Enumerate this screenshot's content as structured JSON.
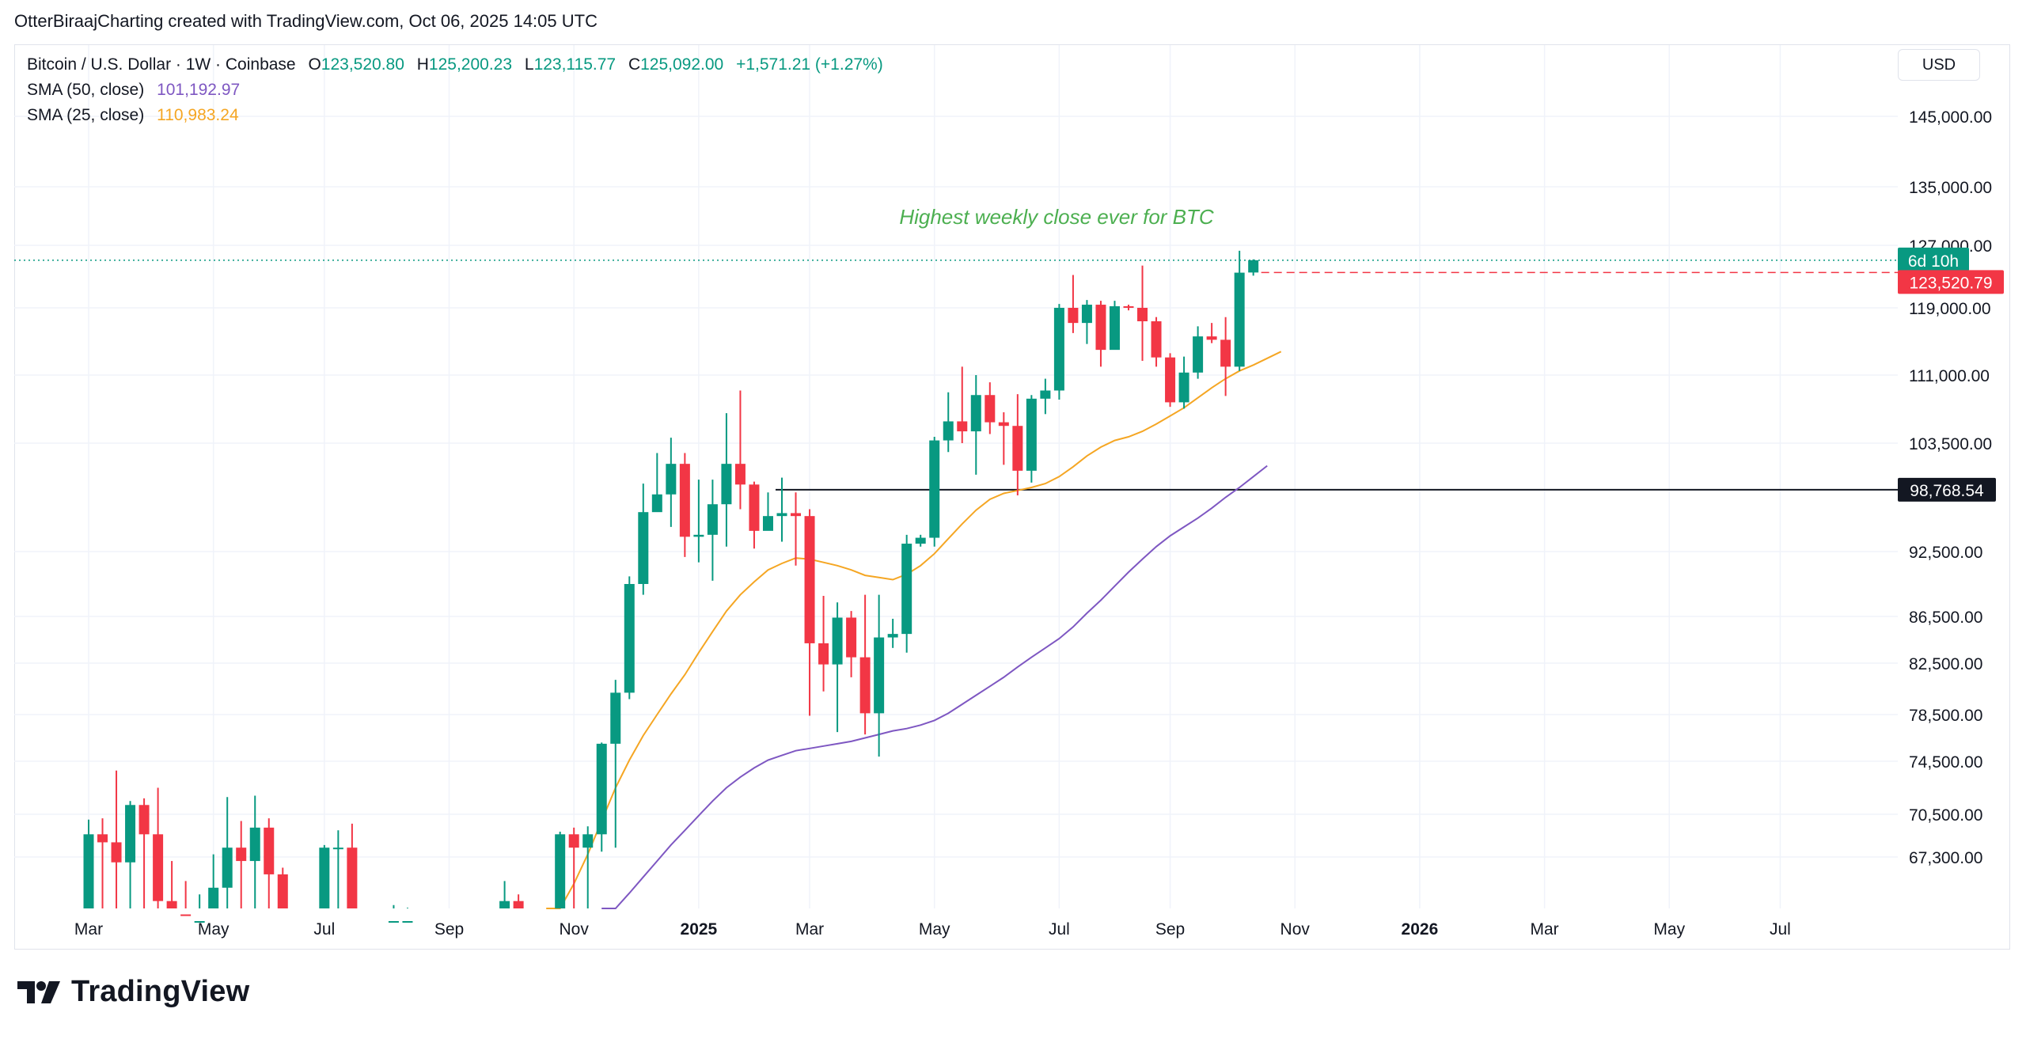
{
  "attribution": "OtterBiraajCharting created with TradingView.com, Oct 06, 2025 14:05 UTC",
  "legend": {
    "symbol": "Bitcoin / U.S. Dollar · 1W · Coinbase",
    "o_label": "O",
    "o_value": "123,520.80",
    "h_label": "H",
    "h_value": "125,200.23",
    "l_label": "L",
    "l_value": "123,115.77",
    "c_label": "C",
    "c_value": "125,092.00",
    "change": "+1,571.21 (+1.27%)",
    "sma50_label": "SMA (50, close)",
    "sma50_value": "101,192.97",
    "sma25_label": "SMA (25, close)",
    "sma25_value": "110,983.24"
  },
  "currency": "USD",
  "logo_text": "TradingView",
  "colors": {
    "up": "#089981",
    "down": "#f23645",
    "sma50": "#7e57c2",
    "sma25": "#f5a623",
    "annotation": "#4caf50"
  },
  "chart_data": {
    "type": "candlestick",
    "title": "Bitcoin / U.S. Dollar · 1W · Coinbase",
    "y_ticks": [
      {
        "value": 145000,
        "label": "145,000.00"
      },
      {
        "value": 135000,
        "label": "135,000.00"
      },
      {
        "value": 127000,
        "label": "127,000.00"
      },
      {
        "value": 119000,
        "label": "119,000.00"
      },
      {
        "value": 111000,
        "label": "111,000.00"
      },
      {
        "value": 103500,
        "label": "103,500.00"
      },
      {
        "value": 92500,
        "label": "92,500.00"
      },
      {
        "value": 86500,
        "label": "86,500.00"
      },
      {
        "value": 82500,
        "label": "82,500.00"
      },
      {
        "value": 78500,
        "label": "78,500.00"
      },
      {
        "value": 74500,
        "label": "74,500.00"
      },
      {
        "value": 70500,
        "label": "70,500.00"
      },
      {
        "value": 67300,
        "label": "67,300.00"
      }
    ],
    "x_ticks": [
      {
        "i": 0,
        "label": "Mar",
        "bold": false
      },
      {
        "i": 9,
        "label": "May",
        "bold": false
      },
      {
        "i": 17,
        "label": "Jul",
        "bold": false
      },
      {
        "i": 26,
        "label": "Sep",
        "bold": false
      },
      {
        "i": 35,
        "label": "Nov",
        "bold": false
      },
      {
        "i": 44,
        "label": "2025",
        "bold": true
      },
      {
        "i": 52,
        "label": "Mar",
        "bold": false
      },
      {
        "i": 61,
        "label": "May",
        "bold": false
      },
      {
        "i": 70,
        "label": "Jul",
        "bold": false
      },
      {
        "i": 78,
        "label": "Sep",
        "bold": false
      },
      {
        "i": 87,
        "label": "Nov",
        "bold": false
      },
      {
        "i": 96,
        "label": "2026",
        "bold": true
      },
      {
        "i": 105,
        "label": "Mar",
        "bold": false
      },
      {
        "i": 114,
        "label": "May",
        "bold": false
      },
      {
        "i": 122,
        "label": "Jul",
        "bold": false
      }
    ],
    "candles": [
      [
        62500,
        69000,
        70100,
        62500
      ],
      [
        69000,
        68400,
        70200,
        62500
      ],
      [
        68400,
        66900,
        73800,
        62500
      ],
      [
        66900,
        71200,
        71500,
        62500
      ],
      [
        71200,
        69000,
        71700,
        62500
      ],
      [
        69000,
        64000,
        72500,
        62500
      ],
      [
        64000,
        63000,
        67000,
        62500
      ],
      [
        63000,
        62500,
        65500,
        62500
      ],
      [
        62500,
        62500,
        64500,
        62500
      ],
      [
        62500,
        65000,
        67500,
        62500
      ],
      [
        65000,
        68000,
        71800,
        62500
      ],
      [
        68000,
        67000,
        70000,
        62500
      ],
      [
        67000,
        69500,
        71900,
        62500
      ],
      [
        69500,
        66000,
        70200,
        62500
      ],
      [
        66000,
        62500,
        66500,
        62500
      ],
      [
        62500,
        62500,
        62500,
        62500
      ],
      [
        62500,
        62500,
        62500,
        62500
      ],
      [
        62500,
        68000,
        68200,
        62500
      ],
      [
        68000,
        68000,
        69300,
        62500
      ],
      [
        68000,
        62500,
        69800,
        62500
      ],
      [
        62500,
        62500,
        62500,
        62500
      ],
      [
        62500,
        62500,
        62500,
        62500
      ],
      [
        62500,
        62500,
        63700,
        62500
      ],
      [
        62500,
        62500,
        63500,
        62500
      ],
      [
        62500,
        62500,
        62500,
        62500
      ],
      [
        62500,
        62500,
        62500,
        62500
      ],
      [
        62500,
        62500,
        62500,
        62500
      ],
      [
        62500,
        62500,
        62500,
        62500
      ],
      [
        62500,
        62500,
        62500,
        62500
      ],
      [
        62500,
        62500,
        62500,
        62500
      ],
      [
        62500,
        64000,
        65500,
        62500
      ],
      [
        64000,
        62500,
        64500,
        62500
      ],
      [
        62500,
        62500,
        62500,
        62500
      ],
      [
        62500,
        62500,
        62500,
        62500
      ],
      [
        62500,
        69000,
        69200,
        62500
      ],
      [
        69000,
        68000,
        69500,
        62500
      ],
      [
        68000,
        69000,
        69600,
        62500
      ],
      [
        69000,
        76000,
        76100,
        67700
      ],
      [
        76000,
        80200,
        81200,
        68000
      ],
      [
        80200,
        89500,
        90200,
        79700
      ],
      [
        89500,
        96500,
        99400,
        88500
      ],
      [
        96500,
        98300,
        102500,
        97000
      ],
      [
        98300,
        101400,
        104100,
        95000
      ],
      [
        101400,
        94000,
        102500,
        92000
      ],
      [
        94000,
        94200,
        99800,
        91500
      ],
      [
        94200,
        97300,
        99800,
        89800
      ],
      [
        97300,
        101400,
        106800,
        93000
      ],
      [
        101400,
        99300,
        109300,
        96800
      ],
      [
        99300,
        94600,
        99600,
        92800
      ],
      [
        94600,
        96100,
        98500,
        95000
      ],
      [
        96100,
        96400,
        100000,
        93500
      ],
      [
        96400,
        96100,
        98500,
        91200
      ],
      [
        96100,
        84200,
        96800,
        78400
      ],
      [
        84200,
        82400,
        88400,
        80300
      ],
      [
        82400,
        86400,
        87800,
        77000
      ],
      [
        86400,
        83000,
        87000,
        81400
      ],
      [
        83000,
        78600,
        88500,
        76800
      ],
      [
        78600,
        84700,
        88500,
        74900
      ],
      [
        84700,
        85000,
        86300,
        83800
      ],
      [
        85000,
        93300,
        94200,
        83400
      ],
      [
        93300,
        93900,
        94200,
        93000
      ],
      [
        93900,
        103800,
        104200,
        93000
      ],
      [
        103800,
        105900,
        109100,
        102600
      ],
      [
        105900,
        104800,
        112000,
        103500
      ],
      [
        104800,
        108800,
        111000,
        100300
      ],
      [
        108800,
        105800,
        110200,
        104500
      ],
      [
        105800,
        105400,
        106900,
        101300
      ],
      [
        105400,
        100700,
        108900,
        98200
      ],
      [
        100700,
        108400,
        108800,
        99500
      ],
      [
        108400,
        109300,
        110600,
        106700
      ],
      [
        109300,
        119000,
        119500,
        108300
      ],
      [
        119000,
        117200,
        123200,
        116000
      ],
      [
        117200,
        119400,
        120000,
        114700
      ],
      [
        119400,
        114000,
        119900,
        112000
      ],
      [
        114000,
        119200,
        119900,
        114400
      ],
      [
        119200,
        119000,
        119400,
        118700
      ],
      [
        119000,
        117400,
        124400,
        112700
      ],
      [
        117400,
        113100,
        117900,
        112000
      ],
      [
        113100,
        108000,
        113600,
        107500
      ],
      [
        108000,
        111300,
        113200,
        107300
      ],
      [
        111300,
        115600,
        116800,
        110600
      ],
      [
        115600,
        115200,
        117200,
        114800
      ],
      [
        115200,
        112000,
        117900,
        108700
      ],
      [
        112000,
        123500,
        126300,
        111500
      ],
      [
        123520.8,
        125092,
        125200.23,
        123115.77
      ]
    ],
    "sma25": [
      [
        33,
        62500
      ],
      [
        34,
        63400
      ],
      [
        35,
        65300
      ],
      [
        36,
        67500
      ],
      [
        37,
        70000
      ],
      [
        38,
        72500
      ],
      [
        39,
        74600
      ],
      [
        40,
        76700
      ],
      [
        41,
        78500
      ],
      [
        42,
        80100
      ],
      [
        43,
        81600
      ],
      [
        44,
        83400
      ],
      [
        45,
        85200
      ],
      [
        46,
        87000
      ],
      [
        47,
        88500
      ],
      [
        48,
        89700
      ],
      [
        49,
        90800
      ],
      [
        50,
        91400
      ],
      [
        51,
        91900
      ],
      [
        52,
        91800
      ],
      [
        53,
        91500
      ],
      [
        54,
        91200
      ],
      [
        55,
        90800
      ],
      [
        56,
        90300
      ],
      [
        57,
        90100
      ],
      [
        58,
        89900
      ],
      [
        59,
        90400
      ],
      [
        60,
        91200
      ],
      [
        61,
        92300
      ],
      [
        62,
        93800
      ],
      [
        63,
        95300
      ],
      [
        64,
        96700
      ],
      [
        65,
        97800
      ],
      [
        66,
        98400
      ],
      [
        67,
        98700
      ],
      [
        68,
        99000
      ],
      [
        69,
        99400
      ],
      [
        70,
        100100
      ],
      [
        71,
        101100
      ],
      [
        72,
        102200
      ],
      [
        73,
        103100
      ],
      [
        74,
        103800
      ],
      [
        75,
        104200
      ],
      [
        76,
        104800
      ],
      [
        77,
        105600
      ],
      [
        78,
        106500
      ],
      [
        79,
        107400
      ],
      [
        80,
        108500
      ],
      [
        81,
        109600
      ],
      [
        82,
        110600
      ],
      [
        83,
        111500
      ],
      [
        84,
        112200
      ],
      [
        85,
        113000
      ],
      [
        86,
        113800
      ]
    ],
    "sma50": [
      [
        37,
        62500
      ],
      [
        38,
        63400
      ],
      [
        39,
        64600
      ],
      [
        40,
        65800
      ],
      [
        41,
        67000
      ],
      [
        42,
        68200
      ],
      [
        43,
        69300
      ],
      [
        44,
        70400
      ],
      [
        45,
        71500
      ],
      [
        46,
        72500
      ],
      [
        47,
        73300
      ],
      [
        48,
        74000
      ],
      [
        49,
        74600
      ],
      [
        50,
        75000
      ],
      [
        51,
        75400
      ],
      [
        52,
        75600
      ],
      [
        53,
        75800
      ],
      [
        54,
        76000
      ],
      [
        55,
        76200
      ],
      [
        56,
        76500
      ],
      [
        57,
        76800
      ],
      [
        58,
        77100
      ],
      [
        59,
        77300
      ],
      [
        60,
        77600
      ],
      [
        61,
        78000
      ],
      [
        62,
        78600
      ],
      [
        63,
        79300
      ],
      [
        64,
        80000
      ],
      [
        65,
        80700
      ],
      [
        66,
        81400
      ],
      [
        67,
        82200
      ],
      [
        68,
        83000
      ],
      [
        69,
        83800
      ],
      [
        70,
        84600
      ],
      [
        71,
        85600
      ],
      [
        72,
        86800
      ],
      [
        73,
        88000
      ],
      [
        74,
        89300
      ],
      [
        75,
        90600
      ],
      [
        76,
        91800
      ],
      [
        77,
        93000
      ],
      [
        78,
        94100
      ],
      [
        79,
        95000
      ],
      [
        80,
        95900
      ],
      [
        81,
        96900
      ],
      [
        82,
        98000
      ],
      [
        83,
        99000
      ],
      [
        84,
        100100
      ],
      [
        85,
        101200
      ]
    ],
    "horizontal_line": {
      "value": 98768.54,
      "label": "98,768.54",
      "from_index": 50
    },
    "current_close": {
      "value": 125092,
      "countdown": "6d 10h"
    },
    "open_line": {
      "value": 123520.79,
      "label": "123,520.79"
    },
    "annotation": "Highest weekly close ever for BTC"
  }
}
